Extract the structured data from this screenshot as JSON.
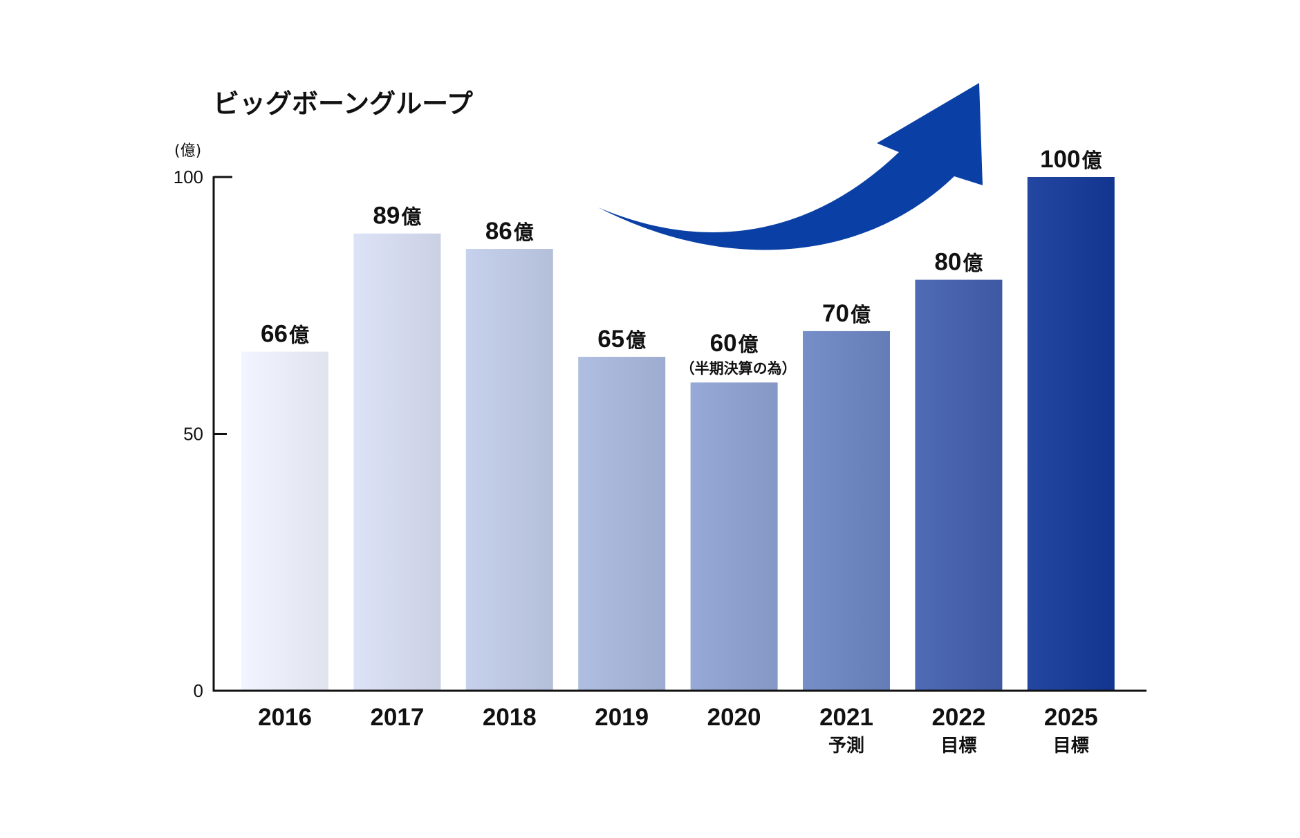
{
  "chart_data": {
    "type": "bar",
    "title": "ビッグボーングループ",
    "unit_label": "(億)",
    "categories": [
      "2016",
      "2017",
      "2018",
      "2019",
      "2020",
      "2021",
      "2022",
      "2025"
    ],
    "category_sublabels": [
      "",
      "",
      "",
      "",
      "",
      "予測",
      "目標",
      "目標"
    ],
    "values": [
      66,
      89,
      86,
      65,
      60,
      70,
      80,
      100
    ],
    "value_unit": "億",
    "value_notes": [
      "",
      "",
      "",
      "",
      "（半期決算の為）",
      "",
      "",
      ""
    ],
    "yticks": [
      0,
      50,
      100
    ],
    "ylim": [
      0,
      100
    ],
    "grid": false,
    "bar_colors": [
      "#eaedf7",
      "#d5dbee",
      "#bec9e4",
      "#a7b6d9",
      "#8fa2cf",
      "#6e87c1",
      "#4863ad",
      "#1c3f99"
    ],
    "arrow_color": "#0a40a6",
    "annotation": "upward-trend-arrow"
  }
}
